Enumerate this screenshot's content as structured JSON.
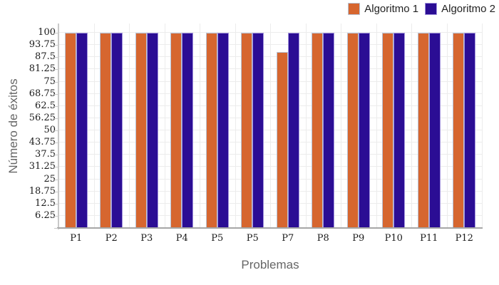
{
  "chart_data": {
    "type": "bar",
    "title": "",
    "xlabel": "Problemas",
    "ylabel": "Número de éxitos",
    "categories": [
      "P1",
      "P2",
      "P3",
      "P4",
      "P5",
      "P5",
      "P7",
      "P8",
      "P9",
      "P10",
      "P11",
      "P12"
    ],
    "series": [
      {
        "name": "Algoritmo 1",
        "color": "#D6662F",
        "line_color": "#B8C4D8",
        "values": [
          100,
          100,
          100,
          100,
          100,
          100,
          90,
          100,
          100,
          100,
          100,
          100
        ]
      },
      {
        "name": "Algoritmo 2",
        "color": "#2B0D94",
        "line_color": "#A193DC",
        "values": [
          100,
          100,
          100,
          100,
          100,
          100,
          100,
          100,
          100,
          100,
          100,
          100
        ]
      }
    ],
    "yticks": [
      6.25,
      12.5,
      18.75,
      25,
      31.25,
      37.5,
      43.75,
      50,
      56.25,
      62.5,
      68.75,
      75,
      81.25,
      87.5,
      93.75,
      100
    ],
    "ylim": [
      0,
      104.7
    ],
    "grid": true,
    "legend_position": "top-right",
    "colors": {
      "grid": "#ececec",
      "x_axis": "#a6a6a6",
      "y_axis": "#c9c9c9",
      "tick_label": "#1a1a1a",
      "axis_title": "#666666",
      "legend_text": "#222222",
      "background": "#ffffff"
    }
  }
}
